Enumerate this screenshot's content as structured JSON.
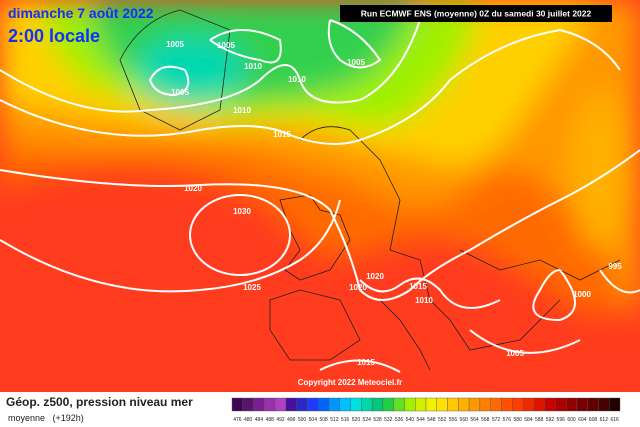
{
  "header": {
    "date": "dimanche 7 août 2022",
    "time": "2:00 locale",
    "run": "Run ECMWF ENS (moyenne) 0Z du samedi 30 juillet 2022"
  },
  "map": {
    "isobar_labels": [
      "1005",
      "1005",
      "1005",
      "1010",
      "1010",
      "1010",
      "1005",
      "1015",
      "1020",
      "1030",
      "1025",
      "1020",
      "1020",
      "1015",
      "1010",
      "1000",
      "995",
      "1005",
      "1015"
    ],
    "copyright": "Copyright 2022 Meteociel.fr"
  },
  "footer": {
    "title": "Géop. z500, pression niveau mer",
    "subtitle": "moyenne   (+192h)"
  },
  "legend": {
    "labels": [
      476,
      480,
      484,
      488,
      492,
      496,
      500,
      504,
      508,
      512,
      516,
      520,
      524,
      528,
      532,
      536,
      540,
      544,
      548,
      552,
      556,
      560,
      564,
      568,
      572,
      576,
      580,
      584,
      588,
      592,
      596,
      600,
      604,
      608,
      612,
      616
    ],
    "colors": [
      "#3d0a4f",
      "#5a1470",
      "#7b1e8f",
      "#9b30ad",
      "#b040c0",
      "#4b0fa0",
      "#2828c8",
      "#1e3cff",
      "#0064ff",
      "#0096ff",
      "#00c0ff",
      "#00e0e0",
      "#00d8a8",
      "#00c878",
      "#20d040",
      "#60e020",
      "#a0f000",
      "#d0f000",
      "#f0f000",
      "#ffe000",
      "#ffc800",
      "#ffb000",
      "#ff9800",
      "#ff8000",
      "#ff6a00",
      "#ff5000",
      "#ff3c00",
      "#f02800",
      "#dc1400",
      "#c80000",
      "#a80000",
      "#900000",
      "#780000",
      "#600000",
      "#480000",
      "#200000"
    ]
  }
}
